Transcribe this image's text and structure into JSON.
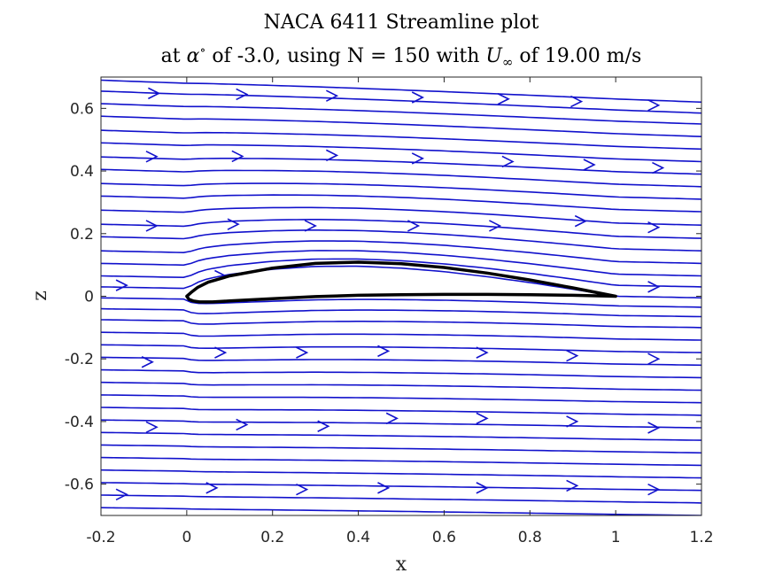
{
  "chart_data": {
    "type": "line",
    "title_line1": "NACA 6411 Streamline plot",
    "title_line2_prefix": "at ",
    "title_alpha": "α",
    "title_degree": "∘",
    "title_line2_mid": " of -3.0, using N = 150 with ",
    "title_uinf": "U",
    "title_inf": "∞",
    "title_line2_suffix": " of 19.00 m/s",
    "xlabel": "x",
    "ylabel": "z",
    "xlim": [
      -0.2,
      1.2
    ],
    "ylim": [
      -0.7,
      0.7
    ],
    "xticks": [
      -0.2,
      0,
      0.2,
      0.4,
      0.6,
      0.8,
      1,
      1.2
    ],
    "xtick_labels": [
      "-0.2",
      "0",
      "0.2",
      "0.4",
      "0.6",
      "0.8",
      "1",
      "1.2"
    ],
    "yticks": [
      -0.6,
      -0.4,
      -0.2,
      0,
      0.2,
      0.4,
      0.6
    ],
    "ytick_labels": [
      "-0.6",
      "-0.4",
      "-0.2",
      "0",
      "0.2",
      "0.4",
      "0.6"
    ],
    "grid": false,
    "colors": {
      "streamline": "#1111cc",
      "airfoil": "#000000"
    },
    "airfoil": {
      "name": "NACA 6411",
      "upper": [
        [
          0,
          0.0
        ],
        [
          0.01,
          0.012
        ],
        [
          0.025,
          0.028
        ],
        [
          0.05,
          0.045
        ],
        [
          0.1,
          0.065
        ],
        [
          0.2,
          0.09
        ],
        [
          0.3,
          0.105
        ],
        [
          0.4,
          0.109
        ],
        [
          0.5,
          0.104
        ],
        [
          0.6,
          0.092
        ],
        [
          0.7,
          0.074
        ],
        [
          0.8,
          0.052
        ],
        [
          0.9,
          0.027
        ],
        [
          1.0,
          0.0
        ]
      ],
      "lower": [
        [
          0,
          0.0
        ],
        [
          0.005,
          -0.01
        ],
        [
          0.015,
          -0.015
        ],
        [
          0.03,
          -0.018
        ],
        [
          0.06,
          -0.018
        ],
        [
          0.1,
          -0.015
        ],
        [
          0.2,
          -0.008
        ],
        [
          0.3,
          -0.001
        ],
        [
          0.4,
          0.003
        ],
        [
          0.5,
          0.005
        ],
        [
          0.6,
          0.006
        ],
        [
          0.7,
          0.006
        ],
        [
          0.8,
          0.005
        ],
        [
          0.9,
          0.003
        ],
        [
          1.0,
          0.0
        ]
      ]
    },
    "streamlines": [
      {
        "z0": 0.69,
        "drift": -0.07
      },
      {
        "z0": 0.655,
        "drift": -0.07
      },
      {
        "z0": 0.615,
        "drift": -0.065
      },
      {
        "z0": 0.575,
        "drift": -0.065
      },
      {
        "z0": 0.53,
        "drift": -0.06
      },
      {
        "z0": 0.49,
        "drift": -0.06
      },
      {
        "z0": 0.445,
        "drift": -0.055
      },
      {
        "z0": 0.405,
        "drift": -0.055
      },
      {
        "z0": 0.36,
        "drift": -0.05
      },
      {
        "z0": 0.32,
        "drift": -0.05
      },
      {
        "z0": 0.275,
        "drift": -0.048
      },
      {
        "z0": 0.23,
        "drift": -0.045
      },
      {
        "z0": 0.19,
        "drift": -0.045
      },
      {
        "z0": 0.145,
        "drift": -0.04
      },
      {
        "z0": 0.105,
        "drift": -0.04
      },
      {
        "z0": 0.065,
        "drift": -0.035
      },
      {
        "z0": 0.03,
        "drift": -0.035
      },
      {
        "z0": -0.005,
        "drift": -0.03
      },
      {
        "z0": -0.04,
        "drift": -0.025
      },
      {
        "z0": -0.075,
        "drift": -0.025
      },
      {
        "z0": -0.115,
        "drift": -0.025
      },
      {
        "z0": -0.155,
        "drift": -0.025
      },
      {
        "z0": -0.195,
        "drift": -0.025
      },
      {
        "z0": -0.235,
        "drift": -0.025
      },
      {
        "z0": -0.275,
        "drift": -0.025
      },
      {
        "z0": -0.315,
        "drift": -0.025
      },
      {
        "z0": -0.355,
        "drift": -0.025
      },
      {
        "z0": -0.395,
        "drift": -0.025
      },
      {
        "z0": -0.435,
        "drift": -0.025
      },
      {
        "z0": -0.475,
        "drift": -0.025
      },
      {
        "z0": -0.515,
        "drift": -0.025
      },
      {
        "z0": -0.555,
        "drift": -0.025
      },
      {
        "z0": -0.595,
        "drift": -0.025
      },
      {
        "z0": -0.635,
        "drift": -0.025
      },
      {
        "z0": -0.675,
        "drift": -0.025
      },
      {
        "z0": -0.715,
        "drift": -0.025
      }
    ],
    "arrows": [
      {
        "x": -0.065,
        "z": 0.648
      },
      {
        "x": 0.14,
        "z": 0.645
      },
      {
        "x": 0.35,
        "z": 0.64
      },
      {
        "x": 0.55,
        "z": 0.635
      },
      {
        "x": 0.75,
        "z": 0.63
      },
      {
        "x": 0.92,
        "z": 0.622
      },
      {
        "x": 1.1,
        "z": 0.61
      },
      {
        "x": -0.07,
        "z": 0.446
      },
      {
        "x": 0.13,
        "z": 0.447
      },
      {
        "x": 0.35,
        "z": 0.45
      },
      {
        "x": 0.55,
        "z": 0.44
      },
      {
        "x": 0.76,
        "z": 0.43
      },
      {
        "x": 0.95,
        "z": 0.42
      },
      {
        "x": 1.11,
        "z": 0.41
      },
      {
        "x": -0.07,
        "z": 0.225
      },
      {
        "x": 0.12,
        "z": 0.23
      },
      {
        "x": 0.3,
        "z": 0.225
      },
      {
        "x": 0.54,
        "z": 0.225
      },
      {
        "x": 0.73,
        "z": 0.225
      },
      {
        "x": 0.93,
        "z": 0.24
      },
      {
        "x": 1.1,
        "z": 0.22
      },
      {
        "x": -0.14,
        "z": 0.035
      },
      {
        "x": 0.09,
        "z": 0.065
      },
      {
        "x": 1.1,
        "z": 0.03
      },
      {
        "x": -0.08,
        "z": -0.21
      },
      {
        "x": 0.09,
        "z": -0.18
      },
      {
        "x": 0.28,
        "z": -0.18
      },
      {
        "x": 0.47,
        "z": -0.175
      },
      {
        "x": 0.7,
        "z": -0.18
      },
      {
        "x": 0.91,
        "z": -0.19
      },
      {
        "x": 1.1,
        "z": -0.2
      },
      {
        "x": -0.07,
        "z": -0.418
      },
      {
        "x": 0.14,
        "z": -0.41
      },
      {
        "x": 0.33,
        "z": -0.415
      },
      {
        "x": 0.49,
        "z": -0.39
      },
      {
        "x": 0.7,
        "z": -0.39
      },
      {
        "x": 0.91,
        "z": -0.4
      },
      {
        "x": 1.1,
        "z": -0.42
      },
      {
        "x": -0.14,
        "z": -0.633
      },
      {
        "x": 0.07,
        "z": -0.612
      },
      {
        "x": 0.28,
        "z": -0.617
      },
      {
        "x": 0.47,
        "z": -0.612
      },
      {
        "x": 0.7,
        "z": -0.612
      },
      {
        "x": 0.91,
        "z": -0.605
      },
      {
        "x": 1.1,
        "z": -0.617
      }
    ]
  }
}
